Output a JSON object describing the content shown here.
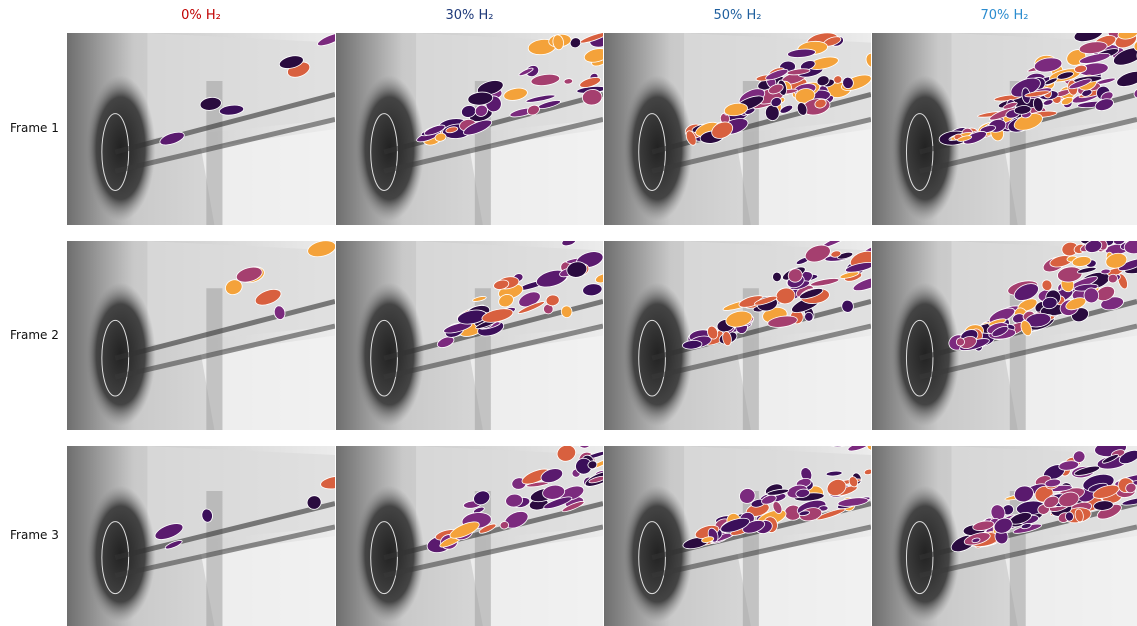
{
  "columns": [
    {
      "label": "0% H₂",
      "color": "#c00000"
    },
    {
      "label": "30% H₂",
      "color": "#1f3a7a"
    },
    {
      "label": "50% H₂",
      "color": "#1f5f9e"
    },
    {
      "label": "70% H₂",
      "color": "#2b8ccf"
    }
  ],
  "rows": [
    {
      "label": "Frame 1"
    },
    {
      "label": "Frame 2"
    },
    {
      "label": "Frame 3"
    }
  ]
}
